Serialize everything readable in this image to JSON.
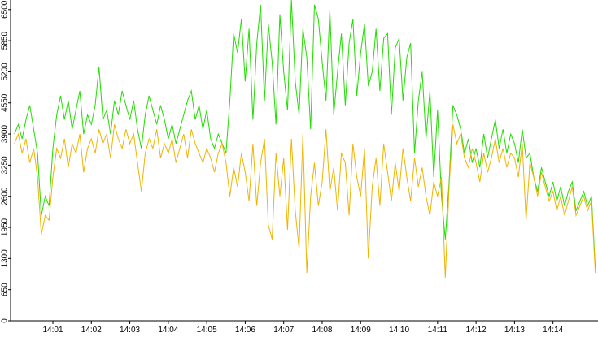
{
  "chart_data": {
    "type": "line",
    "x": [
      0,
      0.1,
      0.2,
      0.3,
      0.4,
      0.5,
      0.6,
      0.7,
      0.8,
      0.9,
      1,
      1.1,
      1.2,
      1.3,
      1.4,
      1.5,
      1.6,
      1.7,
      1.8,
      1.9,
      2,
      2.1,
      2.2,
      2.3,
      2.4,
      2.5,
      2.6,
      2.7,
      2.8,
      2.9,
      3,
      3.1,
      3.2,
      3.3,
      3.4,
      3.5,
      3.6,
      3.7,
      3.8,
      3.9,
      4,
      4.1,
      4.2,
      4.3,
      4.4,
      4.5,
      4.6,
      4.7,
      4.8,
      4.9,
      5,
      5.1,
      5.2,
      5.3,
      5.4,
      5.5,
      5.6,
      5.7,
      5.8,
      5.9,
      6,
      6.1,
      6.2,
      6.3,
      6.4,
      6.5,
      6.6,
      6.7,
      6.8,
      6.9,
      7,
      7.1,
      7.2,
      7.3,
      7.4,
      7.5,
      7.6,
      7.7,
      7.8,
      7.9,
      8,
      8.1,
      8.2,
      8.3,
      8.4,
      8.5,
      8.6,
      8.7,
      8.8,
      8.9,
      9,
      9.1,
      9.2,
      9.3,
      9.4,
      9.5,
      9.6,
      9.7,
      9.8,
      9.9,
      10,
      10.1,
      10.2,
      10.3,
      10.4,
      10.5,
      10.6,
      10.7,
      10.8,
      10.9,
      11,
      11.1,
      11.2,
      11.3,
      11.4,
      11.5,
      11.6,
      11.7,
      11.8,
      11.9,
      12,
      12.1,
      12.2,
      12.3,
      12.4,
      12.5,
      12.6,
      12.7,
      12.8,
      12.9,
      13,
      13.1,
      13.2,
      13.3,
      13.4,
      13.5,
      13.6,
      13.7,
      13.8,
      13.9,
      14,
      14.1,
      14.2,
      14.3,
      14.4,
      14.5,
      14.6,
      14.7,
      14.8,
      14.9,
      15,
      15.1
    ],
    "series": [
      {
        "color": "#22dd00",
        "values": [
          3900,
          4100,
          3800,
          4200,
          4500,
          4000,
          3500,
          2200,
          2600,
          2400,
          3600,
          4300,
          4700,
          4200,
          4600,
          4000,
          4400,
          4800,
          3900,
          4300,
          4100,
          4500,
          5300,
          4200,
          4400,
          3900,
          4600,
          4300,
          4800,
          4500,
          4200,
          4600,
          4000,
          3600,
          4300,
          4700,
          4400,
          4100,
          4500,
          4200,
          3800,
          4100,
          3700,
          4000,
          4300,
          4600,
          4800,
          4200,
          4500,
          4000,
          4400,
          3800,
          3600,
          3900,
          3700,
          3500,
          4600,
          6000,
          5600,
          6300,
          5000,
          6100,
          4200,
          5800,
          6600,
          4600,
          6200,
          5400,
          4100,
          6400,
          5200,
          4400,
          6700,
          5000,
          4300,
          6100,
          5500,
          4000,
          6600,
          6300,
          5400,
          4600,
          6500,
          4300,
          5200,
          6000,
          4500,
          5800,
          6300,
          4700,
          5600,
          6200,
          4900,
          5200,
          6100,
          4800,
          5900,
          6000,
          4300,
          5700,
          5900,
          4600,
          5500,
          5800,
          3500,
          4600,
          5200,
          3800,
          4800,
          3000,
          4400,
          2600,
          1700,
          2900,
          4500,
          4300,
          4000,
          3500,
          3800,
          3300,
          3600,
          3200,
          3900,
          3400,
          3800,
          4200,
          3600,
          4000,
          3500,
          3900,
          3700,
          3300,
          4000,
          3400,
          3500,
          3000,
          2700,
          3200,
          2900,
          2600,
          2900,
          2500,
          2800,
          2400,
          2700,
          2900,
          2300,
          2500,
          2700,
          2400,
          2600,
          1100
        ]
      },
      {
        "color": "#f0b400",
        "values": [
          3700,
          3900,
          3500,
          3800,
          3300,
          3600,
          3000,
          1800,
          2200,
          2100,
          3000,
          3600,
          3400,
          3800,
          3200,
          3700,
          3500,
          3900,
          3100,
          3600,
          3800,
          3500,
          4000,
          3700,
          3900,
          3400,
          4100,
          3800,
          3600,
          4000,
          3700,
          3900,
          3300,
          2700,
          3500,
          3800,
          3600,
          4000,
          3400,
          3700,
          3500,
          3800,
          3300,
          3600,
          3900,
          3400,
          4000,
          3700,
          3500,
          3300,
          3600,
          3400,
          3100,
          3500,
          3700,
          3300,
          2600,
          3200,
          2800,
          3500,
          3100,
          2500,
          3700,
          2400,
          3300,
          3800,
          2000,
          1700,
          3500,
          2600,
          3400,
          1900,
          3800,
          2300,
          1500,
          3900,
          1000,
          2600,
          3300,
          2400,
          2900,
          4000,
          2700,
          3200,
          2300,
          3500,
          3300,
          2200,
          3700,
          3000,
          2600,
          3600,
          1300,
          2800,
          3400,
          2400,
          3700,
          3100,
          2500,
          3300,
          2700,
          3600,
          3000,
          2500,
          3400,
          2800,
          3200,
          2600,
          2200,
          2900,
          2600,
          3000,
          900,
          2800,
          4100,
          3700,
          3900,
          3400,
          3200,
          3600,
          3300,
          2900,
          3500,
          3100,
          3400,
          3800,
          3300,
          3600,
          3200,
          3500,
          3400,
          3000,
          3700,
          2100,
          3300,
          3000,
          2600,
          3100,
          2800,
          2500,
          2700,
          2300,
          2600,
          2200,
          2500,
          2800,
          2200,
          2400,
          2600,
          2300,
          2500,
          1000
        ]
      }
    ],
    "xlim": [
      -0.1,
      15.17
    ],
    "xticks": [
      {
        "value": 1,
        "label": "14:01"
      },
      {
        "value": 2,
        "label": "14:02"
      },
      {
        "value": 3,
        "label": "14:03"
      },
      {
        "value": 4,
        "label": "14:04"
      },
      {
        "value": 5,
        "label": "14:05"
      },
      {
        "value": 6,
        "label": "14:06"
      },
      {
        "value": 7,
        "label": "14:07"
      },
      {
        "value": 8,
        "label": "14:08"
      },
      {
        "value": 9,
        "label": "14:09"
      },
      {
        "value": 10,
        "label": "14:10"
      },
      {
        "value": 11,
        "label": "14:11"
      },
      {
        "value": 12,
        "label": "14:12"
      },
      {
        "value": 13,
        "label": "14:13"
      },
      {
        "value": 14,
        "label": "14:14"
      }
    ],
    "ylim": [
      0,
      6700
    ],
    "yticks": [
      0,
      650,
      1300,
      1950,
      2600,
      3250,
      3900,
      4550,
      5200,
      5850,
      6500
    ]
  }
}
